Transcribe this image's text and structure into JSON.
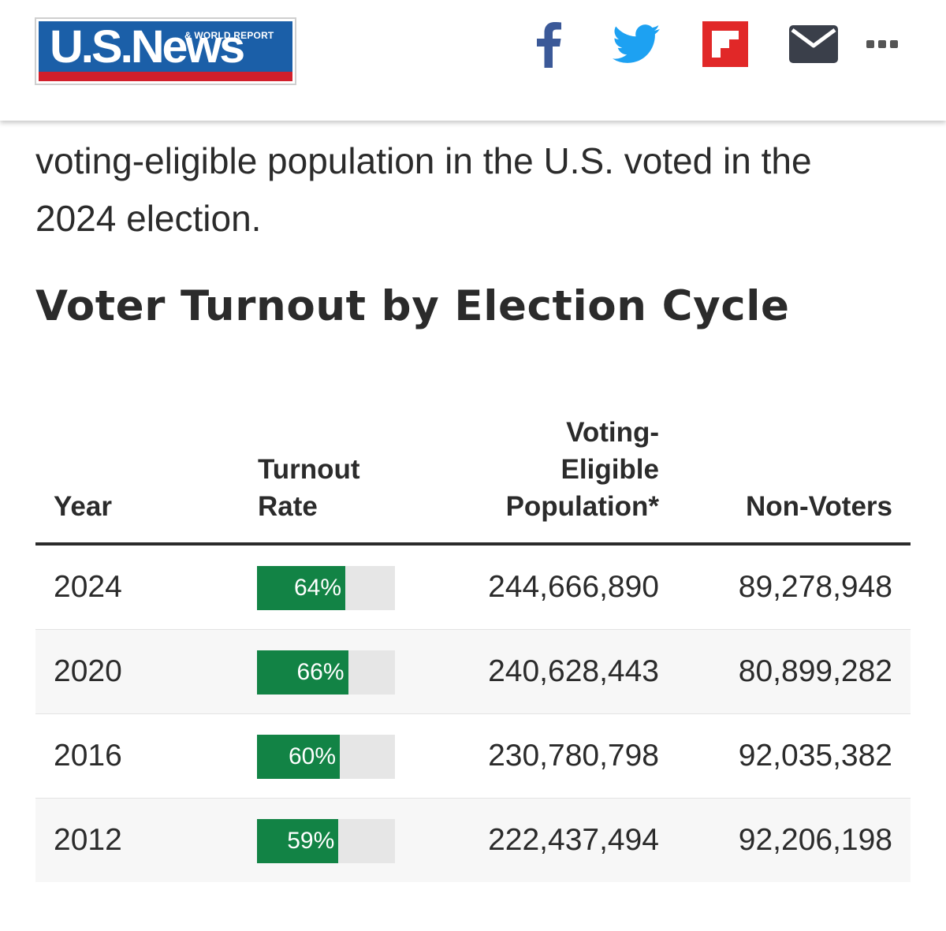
{
  "header": {
    "logo_main": "U.S.News",
    "logo_sub": "& WORLD REPORT",
    "share_icons": [
      "facebook-icon",
      "twitter-icon",
      "flipboard-icon",
      "email-icon",
      "more-icon"
    ],
    "colors": {
      "logo_blue": "#1b5fa8",
      "logo_red": "#d21f2b",
      "facebook": "#3b5998",
      "twitter": "#1da1f2",
      "flipboard": "#e12828",
      "email": "#3a3f4a",
      "more": "#555555"
    }
  },
  "article": {
    "intro_line1": "voting-eligible population in the U.S. voted in the",
    "intro_line2": "2024 election.",
    "section_title": "Voter Turnout by Election Cycle"
  },
  "table": {
    "headers": {
      "year": "Year",
      "rate_line1": "Turnout",
      "rate_line2": "Rate",
      "vep_line1": "Voting-",
      "vep_line2": "Eligible",
      "vep_line3": "Population*",
      "non_voters": "Non-Voters"
    },
    "rows": [
      {
        "year": "2024",
        "rate_label": "64%",
        "rate": 64,
        "vep": "244,666,890",
        "non_voters": "89,278,948"
      },
      {
        "year": "2020",
        "rate_label": "66%",
        "rate": 66,
        "vep": "240,628,443",
        "non_voters": "80,899,282"
      },
      {
        "year": "2016",
        "rate_label": "60%",
        "rate": 60,
        "vep": "230,780,798",
        "non_voters": "92,035,382"
      },
      {
        "year": "2012",
        "rate_label": "59%",
        "rate": 59,
        "vep": "222,437,494",
        "non_voters": "92,206,198"
      }
    ],
    "colors": {
      "bar_fill": "#128345",
      "bar_track": "#e6e6e6"
    }
  }
}
